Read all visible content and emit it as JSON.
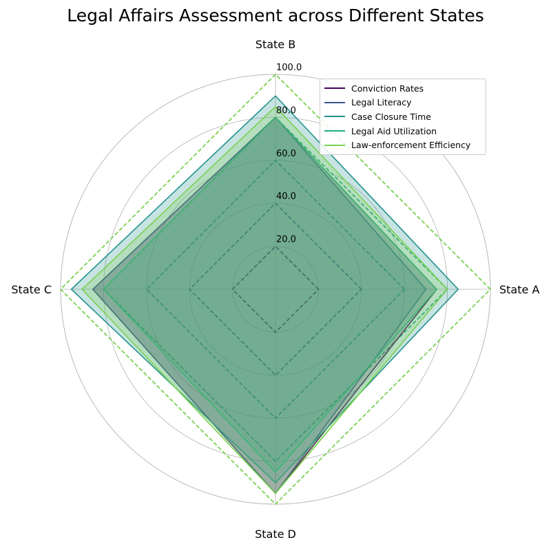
{
  "chart_data": {
    "type": "radar",
    "title": "Legal Affairs Assessment across Different States",
    "categories": [
      "State A",
      "State B",
      "State C",
      "State D"
    ],
    "rlim": [
      0,
      100
    ],
    "radial_ticks": [
      "20.0",
      "40.0",
      "60.0",
      "80.0",
      "100.0"
    ],
    "radial_tick_values": [
      20,
      40,
      60,
      80,
      100
    ],
    "grid": true,
    "legend_position": "top-right",
    "series": [
      {
        "name": "Conviction Rates",
        "values": [
          75,
          80,
          85,
          95
        ],
        "color": "#440154"
      },
      {
        "name": "Legal Literacy",
        "values": [
          70,
          80,
          85,
          95
        ],
        "color": "#3b528b"
      },
      {
        "name": "Case Closure Time",
        "values": [
          85,
          90,
          95,
          90
        ],
        "color": "#21918c"
      },
      {
        "name": "Legal Aid Utilization",
        "values": [
          75,
          80,
          80,
          85
        ],
        "color": "#27ad81"
      },
      {
        "name": "Law-enforcement Efficiency",
        "values": [
          80,
          85,
          90,
          95
        ],
        "color": "#7ad151"
      }
    ],
    "reference_levels": [
      {
        "value": 20,
        "color": "#440154"
      },
      {
        "value": 40,
        "color": "#3b528b"
      },
      {
        "value": 60,
        "color": "#21918c"
      },
      {
        "value": 80,
        "color": "#27ad81"
      },
      {
        "value": 100,
        "color": "#7ad151"
      }
    ]
  }
}
